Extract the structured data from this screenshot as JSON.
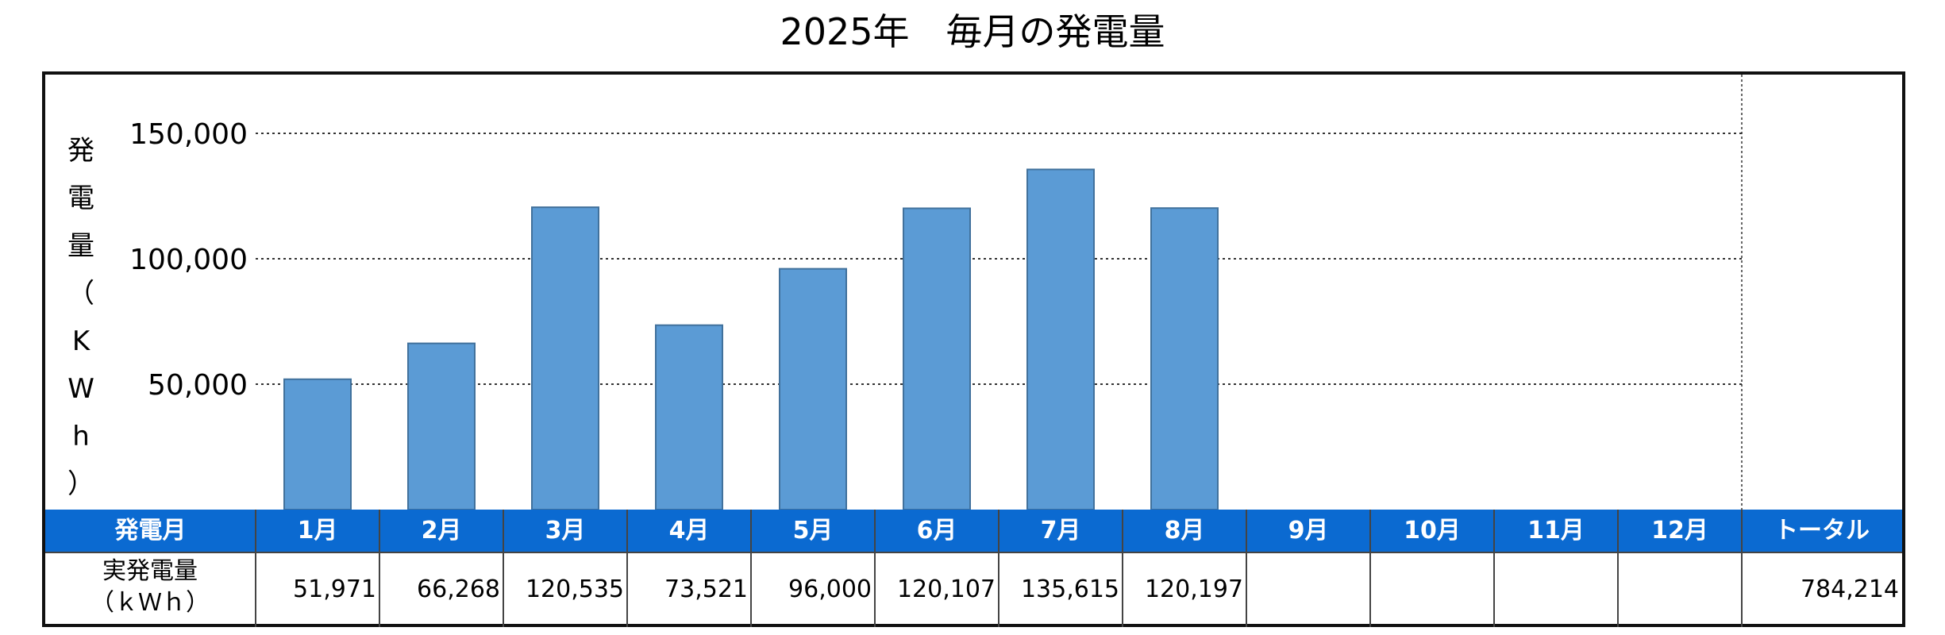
{
  "title": "2025年　毎月の発電量",
  "y_axis_label_chars": [
    "発",
    "電",
    "量",
    "（",
    "K",
    "W",
    "h",
    "）"
  ],
  "table": {
    "header_label": "発電月",
    "row_label_line1": "実発電量",
    "row_label_line2": "（ｋＷｈ）",
    "months": [
      "1月",
      "2月",
      "3月",
      "4月",
      "5月",
      "6月",
      "7月",
      "8月",
      "9月",
      "10月",
      "11月",
      "12月"
    ],
    "values_text": [
      "51,971",
      "66,268",
      "120,535",
      "73,521",
      "96,000",
      "120,107",
      "135,615",
      "120,197",
      "",
      "",
      "",
      ""
    ],
    "total_label": "トータル",
    "total_value": "784,214"
  },
  "chart_data": {
    "type": "bar",
    "categories": [
      "1月",
      "2月",
      "3月",
      "4月",
      "5月",
      "6月",
      "7月",
      "8月",
      "9月",
      "10月",
      "11月",
      "12月"
    ],
    "values": [
      51971,
      66268,
      120535,
      73521,
      96000,
      120107,
      135615,
      120197,
      null,
      null,
      null,
      null
    ],
    "title": "2025年　毎月の発電量",
    "ylabel": "発電量（KWh）",
    "ylim": [
      0,
      150000
    ],
    "yticks": [
      50000,
      100000,
      150000
    ],
    "ytick_labels": [
      "50,000",
      "100,000",
      "150,000"
    ],
    "grid": "horizontal dotted",
    "bar_color": "#5b9bd5",
    "header_color": "#0b6ad1"
  }
}
